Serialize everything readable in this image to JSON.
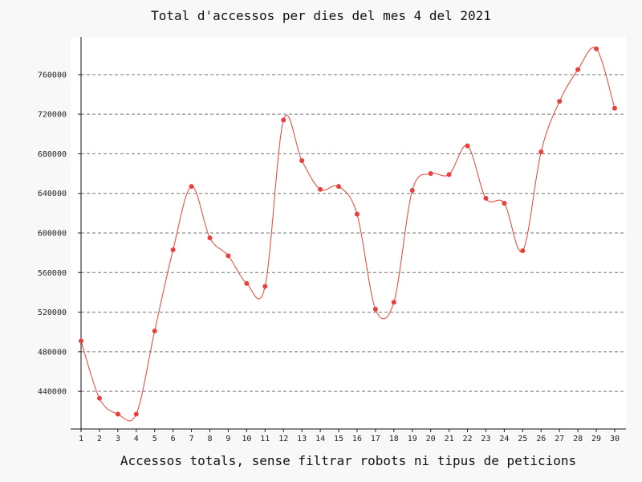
{
  "chart_data": {
    "type": "line",
    "title": "Total d'accessos per dies del mes 4 del 2021",
    "xlabel": "Accessos totals, sense filtrar robots ni tipus de peticions",
    "ylabel": "",
    "categories": [
      "1",
      "2",
      "3",
      "4",
      "5",
      "6",
      "7",
      "8",
      "9",
      "10",
      "11",
      "12",
      "13",
      "14",
      "15",
      "16",
      "17",
      "18",
      "19",
      "20",
      "21",
      "22",
      "23",
      "24",
      "25",
      "26",
      "27",
      "28",
      "29",
      "30"
    ],
    "series": [
      {
        "values": [
          491000,
          433000,
          417000,
          417000,
          501000,
          583000,
          647000,
          595000,
          577000,
          549000,
          546000,
          714000,
          673000,
          644000,
          647000,
          619000,
          523000,
          530000,
          643000,
          660000,
          659000,
          688000,
          635000,
          630000,
          582000,
          682000,
          733000,
          765000,
          786000,
          726000
        ],
        "color": "#e8413a"
      }
    ],
    "yticks": [
      440000,
      480000,
      520000,
      560000,
      600000,
      640000,
      680000,
      720000,
      760000
    ],
    "ytick_labels": [
      "440000",
      "480000",
      "520000",
      "560000",
      "600000",
      "640000",
      "680000",
      "720000",
      "760000"
    ],
    "ylim": [
      402000,
      798000
    ],
    "grid": true,
    "grid_style": "dashed",
    "smooth": true,
    "background": "#ffffff"
  }
}
